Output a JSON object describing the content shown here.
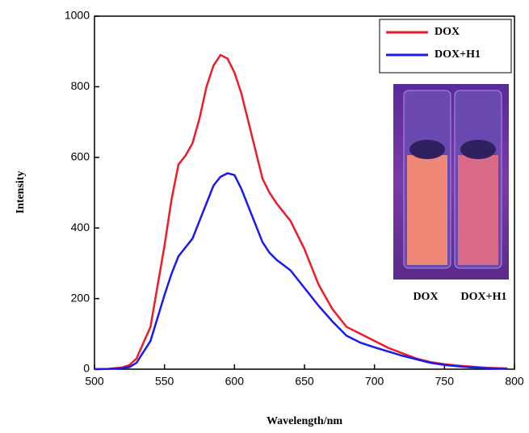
{
  "chart_data": {
    "type": "line",
    "x_label": "Wavelength/nm",
    "y_label": "Intensity",
    "x": [
      500,
      510,
      520,
      525,
      530,
      540,
      550,
      555,
      560,
      565,
      570,
      575,
      580,
      585,
      590,
      595,
      600,
      605,
      610,
      615,
      620,
      625,
      630,
      640,
      650,
      660,
      670,
      680,
      690,
      700,
      710,
      720,
      730,
      740,
      750,
      760,
      770,
      780,
      795
    ],
    "series": [
      {
        "name": "DOX",
        "color": "#ee1c25",
        "values": [
          0,
          1,
          5,
          12,
          30,
          120,
          350,
          480,
          580,
          605,
          640,
          710,
          800,
          860,
          890,
          880,
          840,
          780,
          700,
          620,
          540,
          500,
          470,
          420,
          340,
          240,
          170,
          120,
          100,
          80,
          60,
          45,
          30,
          20,
          14,
          10,
          7,
          4,
          2
        ]
      },
      {
        "name": "DOX+H1",
        "color": "#1a1aee",
        "values": [
          0,
          1,
          3,
          6,
          18,
          80,
          210,
          270,
          320,
          345,
          370,
          420,
          470,
          520,
          545,
          555,
          550,
          510,
          460,
          410,
          360,
          330,
          310,
          280,
          230,
          180,
          135,
          95,
          75,
          62,
          50,
          38,
          28,
          18,
          12,
          8,
          5,
          3,
          1
        ]
      }
    ],
    "xlim": [
      500,
      800
    ],
    "xticks": [
      500,
      550,
      600,
      650,
      700,
      750,
      800
    ],
    "ylim": [
      0,
      1000
    ],
    "yticks": [
      0,
      200,
      400,
      600,
      800,
      1000
    ],
    "legend": "upper right",
    "inset_labels": [
      "DOX",
      "DOX+H1"
    ]
  }
}
